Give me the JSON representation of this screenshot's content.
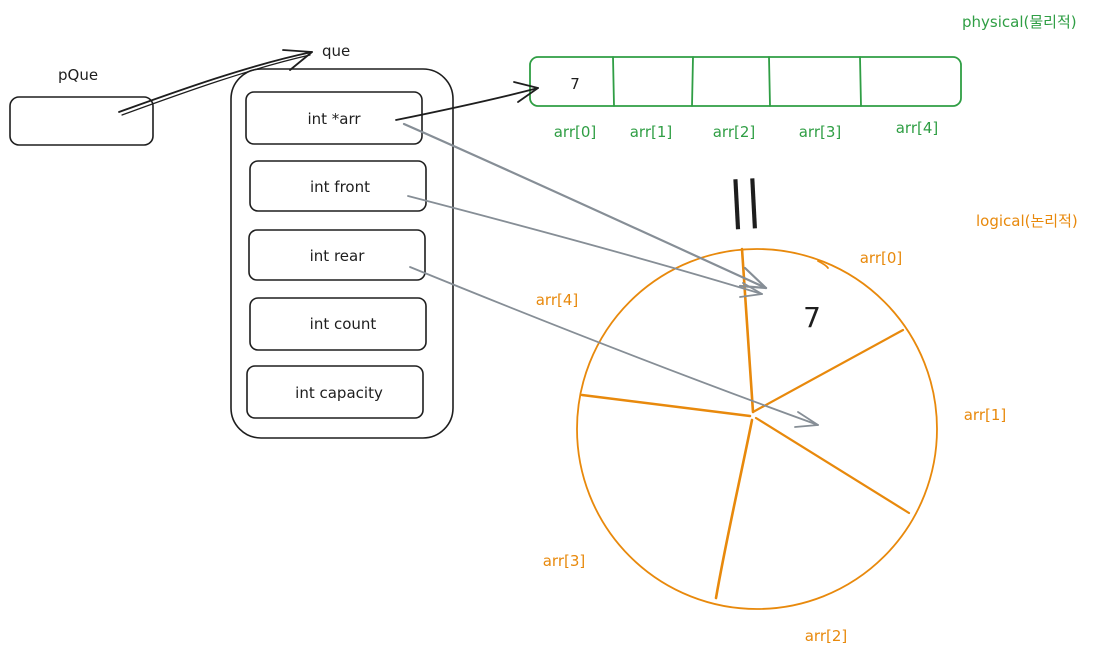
{
  "pointer": {
    "label": "pQue"
  },
  "struct": {
    "label": "que",
    "fields": [
      "int *arr",
      "int front",
      "int rear",
      "int count",
      "int capacity"
    ]
  },
  "physical": {
    "title": "physical(물리적)",
    "cells": [
      "7",
      "",
      "",
      "",
      ""
    ],
    "indices": [
      "arr[0]",
      "arr[1]",
      "arr[2]",
      "arr[3]",
      "arr[4]"
    ]
  },
  "equals": {
    "mark": "||"
  },
  "logical": {
    "title": "logical(논리적)",
    "value": "7",
    "labels": {
      "a0": "arr[0]",
      "a1": "arr[1]",
      "a2": "arr[2]",
      "a3": "arr[3]",
      "a4": "arr[4]"
    }
  },
  "colors": {
    "ink": "#1e1e1e",
    "green": "#2f9e44",
    "orange": "#e8890c",
    "arrow_gray": "#868e96"
  }
}
